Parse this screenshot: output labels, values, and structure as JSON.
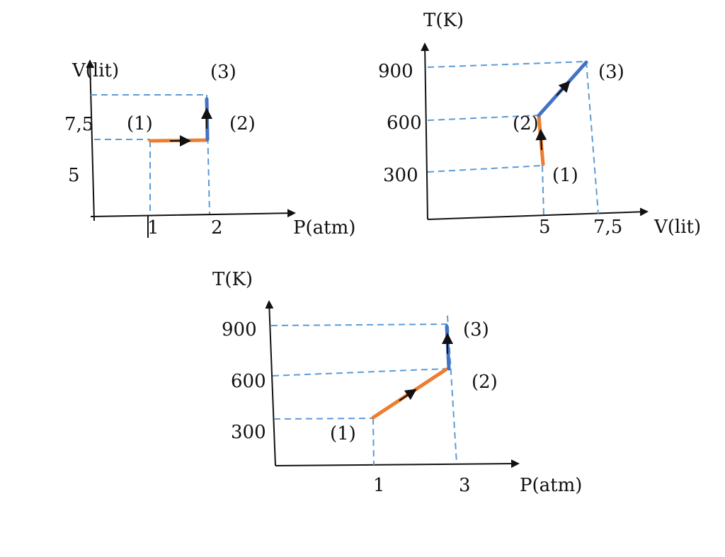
{
  "colors": {
    "guide": "#5b9bd5",
    "segment_1_2": "#ed7d31",
    "segment_2_3": "#4472c4",
    "axis": "#111111"
  },
  "diagrams": [
    {
      "id": "pv",
      "x_axis_label": "P(atm)",
      "y_axis_label": "V(lit)",
      "x_ticks": [
        "1",
        "2"
      ],
      "y_ticks": [
        "7,5",
        "5"
      ],
      "points": [
        "(1)",
        "(2)",
        "(3)"
      ]
    },
    {
      "id": "vt",
      "x_axis_label": "V(lit)",
      "y_axis_label": "T(K)",
      "x_ticks": [
        "5",
        "7,5"
      ],
      "y_ticks": [
        "900",
        "600",
        "300"
      ],
      "points": [
        "(1)",
        "(2)",
        "(3)"
      ]
    },
    {
      "id": "pt",
      "x_axis_label": "P(atm)",
      "y_axis_label": "T(K)",
      "x_ticks": [
        "1",
        "3"
      ],
      "y_ticks": [
        "900",
        "600",
        "300"
      ],
      "points": [
        "(1)",
        "(2)",
        "(3)"
      ]
    }
  ]
}
